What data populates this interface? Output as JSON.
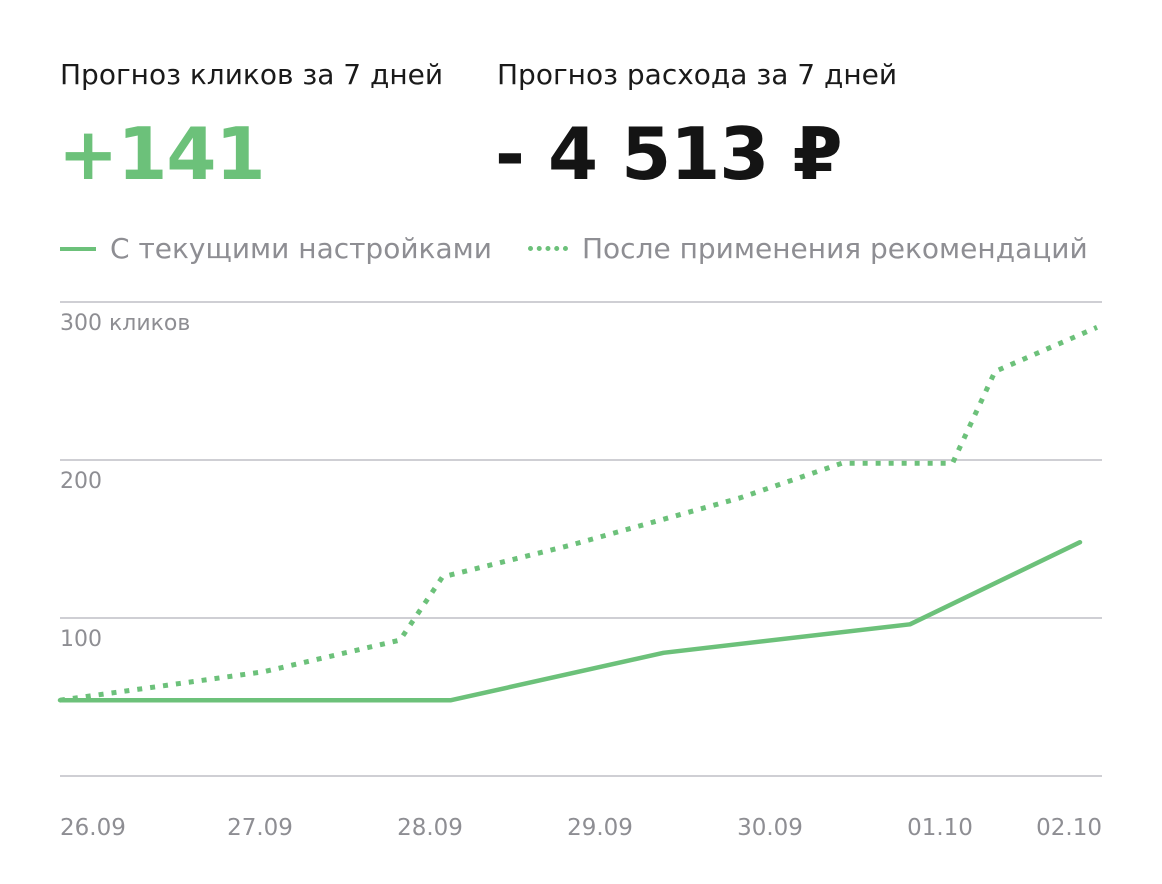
{
  "kpis": [
    {
      "label": "Прогноз кликов за 7 дней",
      "value": "+141"
    },
    {
      "label": "Прогноз расхода за 7 дней",
      "value": "- 4 513 ₽"
    }
  ],
  "colors": {
    "series": "#6cc17a",
    "grid": "#cfcfd4",
    "tick": "#8e8e93",
    "weekend_tick": "#f08c8c",
    "kpi_positive": "#6cc17a",
    "kpi_dark": "#141414"
  },
  "chart_data": {
    "type": "line",
    "x": [
      "26.09",
      "27.09",
      "28.09",
      "29.09",
      "30.09",
      "01.10",
      "02.10"
    ],
    "weekend_x": [
      "28.09",
      "29.09"
    ],
    "y_ticks": [
      {
        "value": 300,
        "label": "300 кликов"
      },
      {
        "value": 200,
        "label": "200"
      },
      {
        "value": 100,
        "label": "100"
      }
    ],
    "ylim": [
      0,
      300
    ],
    "grid": true,
    "legend_position": "top-left",
    "series": [
      {
        "name": "С текущими настройками",
        "style": "solid",
        "points": [
          {
            "x": 0,
            "y": 48
          },
          {
            "x": 2.3,
            "y": 48
          },
          {
            "x": 3.55,
            "y": 78
          },
          {
            "x": 5.0,
            "y": 96
          },
          {
            "x": 6.0,
            "y": 148
          }
        ]
      },
      {
        "name": "После применения рекомендаций",
        "style": "dotted",
        "points": [
          {
            "x": 0,
            "y": 48
          },
          {
            "x": 1.2,
            "y": 66
          },
          {
            "x": 2.0,
            "y": 86
          },
          {
            "x": 2.25,
            "y": 126
          },
          {
            "x": 3.0,
            "y": 146
          },
          {
            "x": 4.0,
            "y": 176
          },
          {
            "x": 4.6,
            "y": 198
          },
          {
            "x": 5.25,
            "y": 198
          },
          {
            "x": 5.5,
            "y": 256
          },
          {
            "x": 6.1,
            "y": 284
          }
        ]
      }
    ]
  }
}
